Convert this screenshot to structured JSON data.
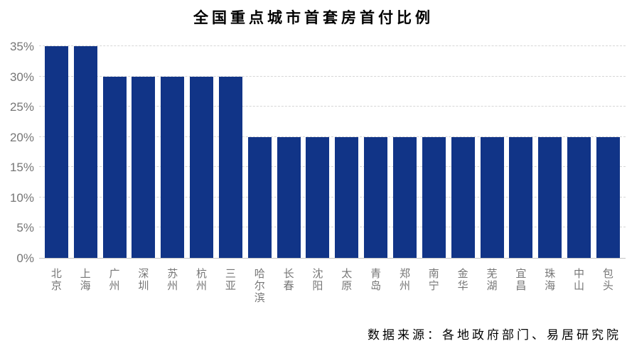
{
  "chart_data": {
    "type": "bar",
    "title": "全国重点城市首套房首付比例",
    "categories": [
      "北京",
      "上海",
      "广州",
      "深圳",
      "苏州",
      "杭州",
      "三亚",
      "哈尔滨",
      "长春",
      "沈阳",
      "太原",
      "青岛",
      "郑州",
      "南宁",
      "金华",
      "芜湖",
      "宜昌",
      "珠海",
      "中山",
      "包头"
    ],
    "values": [
      35,
      35,
      30,
      30,
      30,
      30,
      30,
      20,
      20,
      20,
      20,
      20,
      20,
      20,
      20,
      20,
      20,
      20,
      20,
      20
    ],
    "unit": "%",
    "xlabel": "",
    "ylabel": "",
    "ylim": [
      0,
      35
    ],
    "ytick_step": 5,
    "ytick_labels": [
      "0%",
      "5%",
      "10%",
      "15%",
      "20%",
      "25%",
      "30%",
      "35%"
    ],
    "grid": "horizontal-dashed",
    "legend": "none"
  },
  "footer": {
    "source_text": "数据来源：各地政府部门、易居研究院"
  },
  "colors": {
    "bar": "#113487",
    "gridline": "#d6d6d6",
    "axis_line": "#c3c3c3",
    "tick_label": "#767676",
    "title_text": "#000000"
  }
}
